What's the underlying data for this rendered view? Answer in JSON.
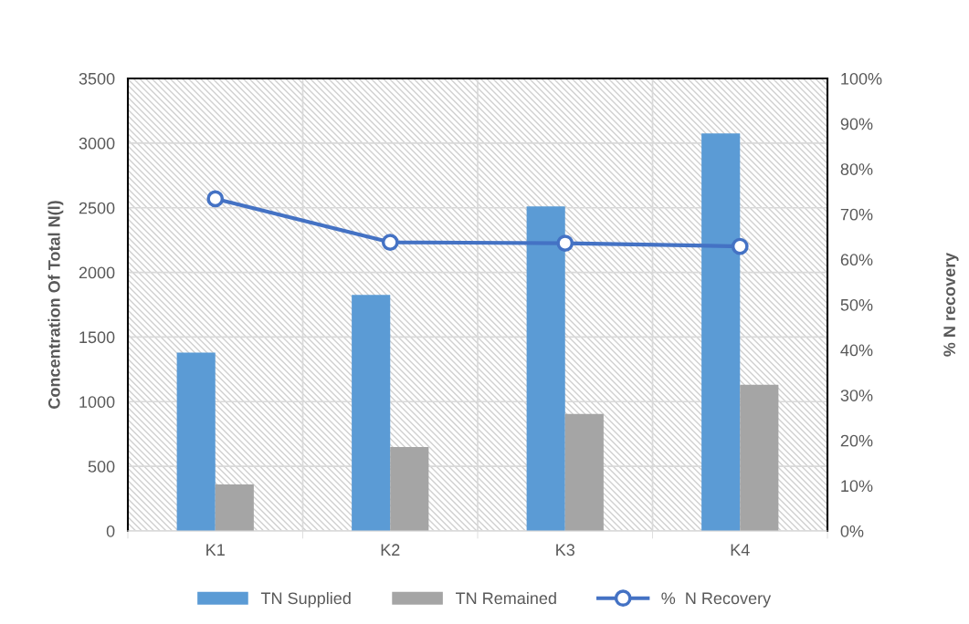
{
  "chart_data": {
    "type": "bar",
    "categories": [
      "K1",
      "K2",
      "K3",
      "K4"
    ],
    "ylabel": "Concentration Of Total N(l)",
    "y2label": "% N recovery",
    "ylim": [
      0,
      3500
    ],
    "yticks": [
      0,
      500,
      1000,
      1500,
      2000,
      2500,
      3000,
      3500
    ],
    "y2lim": [
      0,
      100
    ],
    "y2ticks": [
      {
        "value": 0,
        "label": "0%"
      },
      {
        "value": 10,
        "label": "10%"
      },
      {
        "value": 20,
        "label": "20%"
      },
      {
        "value": 30,
        "label": "30%"
      },
      {
        "value": 40,
        "label": "40%"
      },
      {
        "value": 50,
        "label": "50%"
      },
      {
        "value": 60,
        "label": "60%"
      },
      {
        "value": 70,
        "label": "70%"
      },
      {
        "value": 80,
        "label": "80%"
      },
      {
        "value": 90,
        "label": "90%"
      },
      {
        "value": 100,
        "label": "100%"
      }
    ],
    "grid": true,
    "legend": "bottom",
    "series": [
      {
        "name": "TN Supplied",
        "color": "#5b9bd5",
        "values": [
          1380,
          1825,
          2510,
          3075
        ]
      },
      {
        "name": "TN Remained",
        "color": "#a5a5a5",
        "values": [
          360,
          650,
          905,
          1130
        ]
      },
      {
        "name": "%  N Recovery",
        "type": "line",
        "axis": "y2",
        "color": "#4472c4",
        "marker": "circle",
        "line_style": "solid",
        "values": [
          73.4,
          63.8,
          63.6,
          62.9
        ]
      }
    ]
  }
}
